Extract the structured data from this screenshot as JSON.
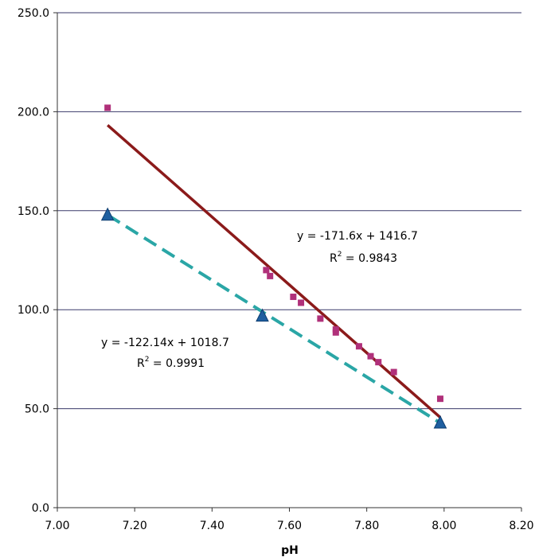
{
  "chart_data": {
    "type": "scatter",
    "title": "",
    "xlabel": "pH",
    "ylabel": "",
    "xlim": [
      7.0,
      8.2
    ],
    "ylim": [
      0.0,
      250.0
    ],
    "x_ticks": [
      "7.00",
      "7.20",
      "7.40",
      "7.60",
      "7.80",
      "8.00",
      "8.20"
    ],
    "y_ticks": [
      "0.0",
      "50.0",
      "100.0",
      "150.0",
      "200.0",
      "250.0"
    ],
    "grid": "horizontal",
    "legend": "none",
    "series": [
      {
        "marker": "square",
        "color": "#b0307a",
        "points": [
          {
            "x": 7.13,
            "y": 202.0
          },
          {
            "x": 7.54,
            "y": 120.0
          },
          {
            "x": 7.55,
            "y": 117.0
          },
          {
            "x": 7.61,
            "y": 106.5
          },
          {
            "x": 7.63,
            "y": 103.5
          },
          {
            "x": 7.68,
            "y": 95.5
          },
          {
            "x": 7.72,
            "y": 90.0
          },
          {
            "x": 7.72,
            "y": 88.5
          },
          {
            "x": 7.78,
            "y": 81.5
          },
          {
            "x": 7.81,
            "y": 76.5
          },
          {
            "x": 7.83,
            "y": 73.5
          },
          {
            "x": 7.87,
            "y": 68.5
          },
          {
            "x": 7.99,
            "y": 55.0
          }
        ],
        "trendline": {
          "slope": -171.6,
          "intercept": 1416.7,
          "x_range": [
            7.13,
            7.99
          ],
          "style": "solid",
          "color": "#8b1a1a",
          "equation": "y = -171.6x + 1416.7",
          "r2_label": "R",
          "r2_value": " = 0.9843"
        }
      },
      {
        "marker": "triangle",
        "color": "#1f5fa0",
        "points": [
          {
            "x": 7.13,
            "y": 148.0
          },
          {
            "x": 7.53,
            "y": 97.0
          },
          {
            "x": 7.99,
            "y": 43.0
          }
        ],
        "trendline": {
          "slope": -122.14,
          "intercept": 1018.7,
          "x_range": [
            7.13,
            7.99
          ],
          "style": "dashed",
          "color": "#2aa6a6",
          "equation": "y = -122.14x + 1018.7",
          "r2_label": "R",
          "r2_value": " = 0.9991"
        }
      }
    ],
    "superscript": "2"
  }
}
